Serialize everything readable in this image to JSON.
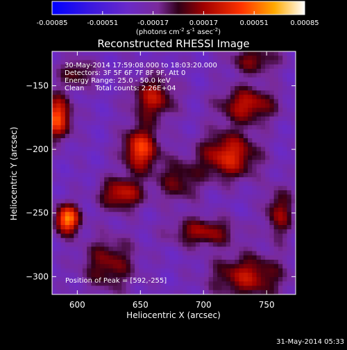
{
  "footer": {
    "timestamp": "31-May-2014 05:33"
  },
  "chart_data": {
    "type": "heatmap",
    "title": "Reconstructed RHESSI Image",
    "xlabel": "Heliocentric X (arcsec)",
    "ylabel": "Heliocentric Y (arcsec)",
    "xlim": [
      580,
      773
    ],
    "ylim": [
      -314,
      -123
    ],
    "x_ticks": [
      600,
      650,
      700,
      750
    ],
    "y_ticks": [
      -300,
      -250,
      -200,
      -150
    ],
    "colorbar": {
      "ticks": [
        "-0.00085",
        "-0.00051",
        "-0.00017",
        "0.00017",
        "0.00051",
        "0.00085"
      ],
      "units_label": "(photons cm",
      "units_sup1": "-2",
      "units_mid": " s",
      "units_sup2": "-1",
      "units_mid2": " asec",
      "units_sup3": "-2",
      "units_end": ")",
      "range": [
        -0.00085,
        0.00085
      ]
    },
    "annotations": [
      "30-May-2014 17:59:08.000 to 18:03:20.000",
      "Detectors: 3F 5F 6F 7F 8F 9F, Att 0",
      "Energy Range: 25.0 - 50.0 keV",
      "Clean     Total counts: 2.26E+04"
    ],
    "peak_label": "Position of Peak = [592,-255]",
    "peak": {
      "x": 592,
      "y": -255
    },
    "sources": [
      {
        "x": 592,
        "y": -255,
        "amp": 0.00085,
        "sx": 7,
        "sy": 8
      },
      {
        "x": 584,
        "y": -175,
        "amp": 0.00072,
        "sx": 8,
        "sy": 12
      },
      {
        "x": 650,
        "y": -200,
        "amp": 0.00068,
        "sx": 10,
        "sy": 12
      },
      {
        "x": 635,
        "y": -235,
        "amp": 0.00055,
        "sx": 12,
        "sy": 9
      },
      {
        "x": 660,
        "y": -160,
        "amp": 0.0005,
        "sx": 12,
        "sy": 12
      },
      {
        "x": 720,
        "y": -205,
        "amp": 0.0006,
        "sx": 16,
        "sy": 13
      },
      {
        "x": 735,
        "y": -165,
        "amp": 0.00052,
        "sx": 16,
        "sy": 10
      },
      {
        "x": 700,
        "y": -265,
        "amp": 0.00045,
        "sx": 18,
        "sy": 8
      },
      {
        "x": 735,
        "y": -300,
        "amp": 0.0005,
        "sx": 20,
        "sy": 12
      },
      {
        "x": 625,
        "y": -290,
        "amp": 0.0004,
        "sx": 15,
        "sy": 15
      },
      {
        "x": 760,
        "y": -250,
        "amp": 0.00042,
        "sx": 8,
        "sy": 14
      },
      {
        "x": 740,
        "y": -130,
        "amp": 0.00038,
        "sx": 14,
        "sy": 8
      },
      {
        "x": 600,
        "y": -140,
        "amp": 0.00035,
        "sx": 10,
        "sy": 8
      },
      {
        "x": 680,
        "y": -225,
        "amp": 0.00035,
        "sx": 12,
        "sy": 12
      }
    ]
  }
}
